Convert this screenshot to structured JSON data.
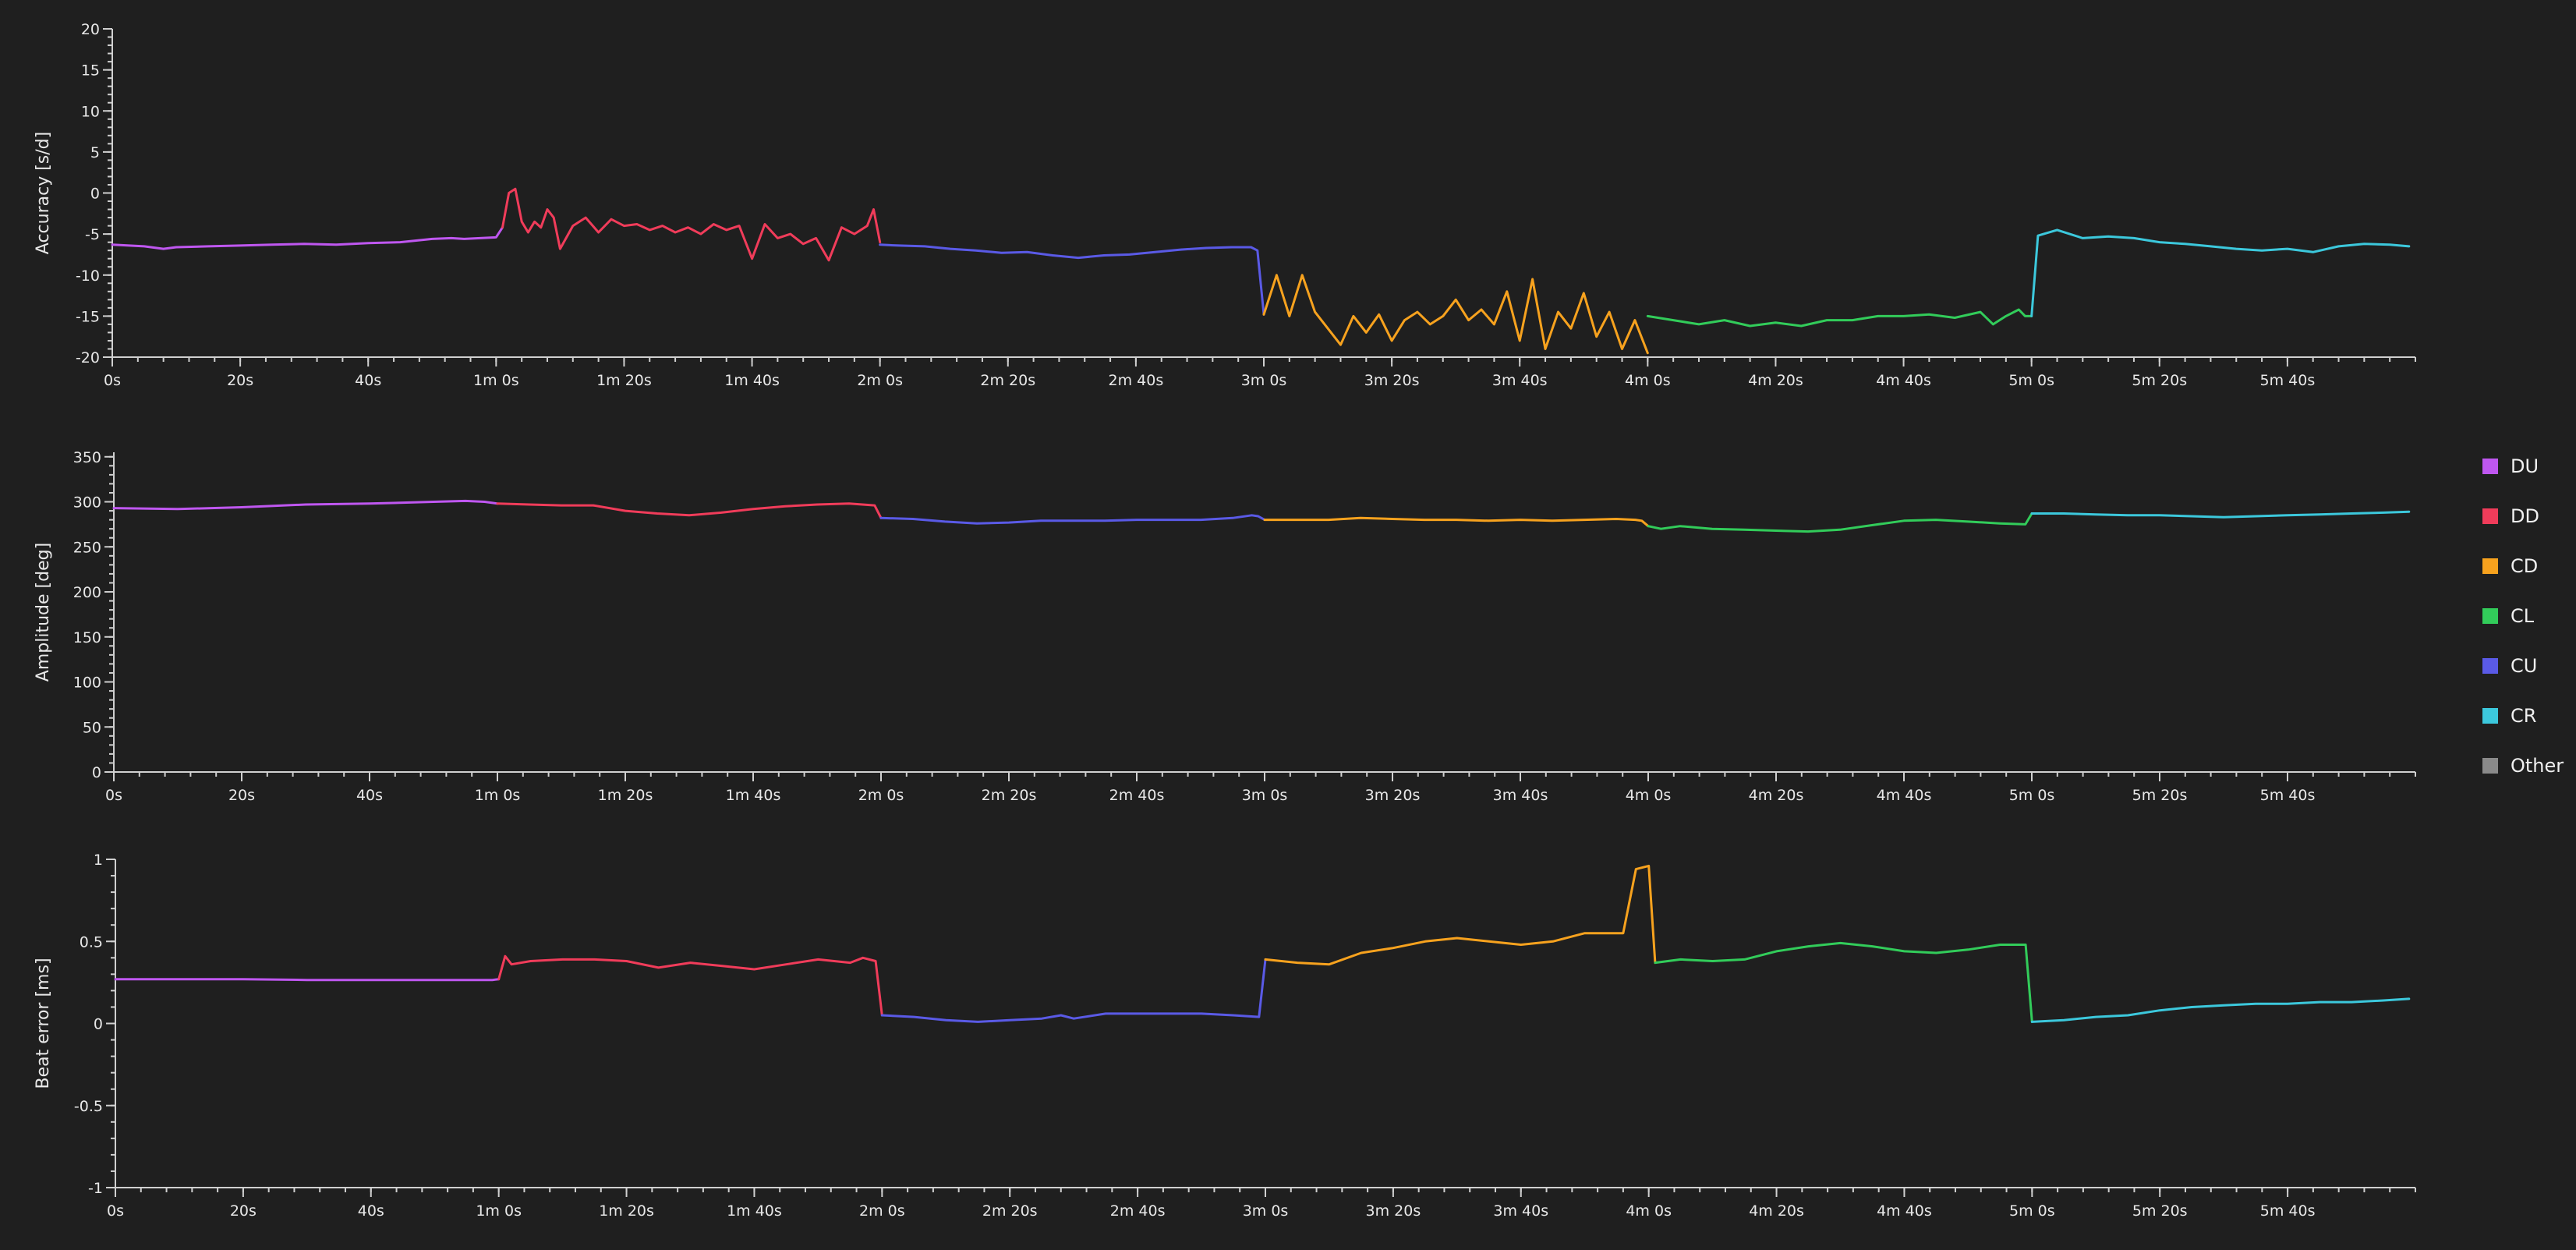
{
  "legend": {
    "items": [
      {
        "key": "DU",
        "label": "DU",
        "color": "#bf57f0"
      },
      {
        "key": "DD",
        "label": "DD",
        "color": "#f03c5a"
      },
      {
        "key": "CD",
        "label": "CD",
        "color": "#f7a21e"
      },
      {
        "key": "CL",
        "label": "CL",
        "color": "#32cc5a"
      },
      {
        "key": "CU",
        "label": "CU",
        "color": "#5a5ae6"
      },
      {
        "key": "CR",
        "label": "CR",
        "color": "#3cc8dc"
      },
      {
        "key": "Other",
        "label": "Other",
        "color": "#8a8a8a"
      }
    ]
  },
  "chart_data": [
    {
      "type": "line",
      "ylabel": "Accuracy [s/d]",
      "ylim": [
        -20,
        20
      ],
      "yticks": [
        {
          "value": 20,
          "label": "20"
        },
        {
          "value": 15,
          "label": "15"
        },
        {
          "value": 10,
          "label": "10"
        },
        {
          "value": 5,
          "label": "5"
        },
        {
          "value": 0,
          "label": "0"
        },
        {
          "value": -5,
          "label": "-5"
        },
        {
          "value": -10,
          "label": "-10"
        },
        {
          "value": -15,
          "label": "-15"
        },
        {
          "value": -20,
          "label": "-20"
        }
      ],
      "xlim": [
        0,
        360
      ],
      "xticks": [
        {
          "value": 0,
          "label": "0s"
        },
        {
          "value": 20,
          "label": "20s"
        },
        {
          "value": 40,
          "label": "40s"
        },
        {
          "value": 60,
          "label": "1m 0s"
        },
        {
          "value": 80,
          "label": "1m 20s"
        },
        {
          "value": 100,
          "label": "1m 40s"
        },
        {
          "value": 120,
          "label": "2m 0s"
        },
        {
          "value": 140,
          "label": "2m 20s"
        },
        {
          "value": 160,
          "label": "2m 40s"
        },
        {
          "value": 180,
          "label": "3m 0s"
        },
        {
          "value": 200,
          "label": "3m 20s"
        },
        {
          "value": 220,
          "label": "3m 40s"
        },
        {
          "value": 240,
          "label": "4m 0s"
        },
        {
          "value": 260,
          "label": "4m 20s"
        },
        {
          "value": 280,
          "label": "4m 40s"
        },
        {
          "value": 300,
          "label": "5m 0s"
        },
        {
          "value": 320,
          "label": "5m 20s"
        },
        {
          "value": 340,
          "label": "5m 40s"
        }
      ],
      "series": [
        {
          "key": "DU",
          "color": "#bf57f0",
          "x": [
            0,
            5,
            8,
            10,
            15,
            20,
            25,
            30,
            35,
            40,
            45,
            50,
            53,
            55,
            60,
            61
          ],
          "y": [
            -6.3,
            -6.5,
            -6.8,
            -6.6,
            -6.5,
            -6.4,
            -6.3,
            -6.2,
            -6.3,
            -6.1,
            -6,
            -5.6,
            -5.5,
            -5.6,
            -5.4,
            -4.2
          ]
        },
        {
          "key": "DD",
          "color": "#f03c5a",
          "x": [
            61,
            62,
            63,
            64,
            65,
            66,
            67,
            68,
            69,
            70,
            72,
            74,
            76,
            78,
            80,
            82,
            84,
            86,
            88,
            90,
            92,
            94,
            96,
            98,
            100,
            102,
            104,
            106,
            108,
            110,
            112,
            114,
            116,
            118,
            119,
            120
          ],
          "y": [
            -4.2,
            0,
            0.5,
            -3.5,
            -4.8,
            -3.5,
            -4.2,
            -2,
            -3,
            -6.8,
            -4,
            -3,
            -4.8,
            -3.2,
            -4,
            -3.8,
            -4.5,
            -4,
            -4.8,
            -4.2,
            -5,
            -3.8,
            -4.5,
            -4,
            -8,
            -3.8,
            -5.5,
            -5,
            -6.2,
            -5.5,
            -8.2,
            -4.2,
            -5,
            -4,
            -2,
            -6
          ]
        },
        {
          "key": "CU",
          "color": "#5a5ae6",
          "x": [
            120,
            123,
            127,
            131,
            135,
            139,
            143,
            147,
            151,
            155,
            159,
            163,
            167,
            171,
            175,
            178,
            179,
            180
          ],
          "y": [
            -6.3,
            -6.4,
            -6.5,
            -6.8,
            -7,
            -7.3,
            -7.2,
            -7.6,
            -7.9,
            -7.6,
            -7.5,
            -7.2,
            -6.9,
            -6.7,
            -6.6,
            -6.6,
            -7,
            -14.8
          ]
        },
        {
          "key": "CD",
          "color": "#f7a21e",
          "x": [
            180,
            182,
            184,
            186,
            188,
            190,
            192,
            194,
            196,
            198,
            200,
            202,
            204,
            206,
            208,
            210,
            212,
            214,
            216,
            218,
            220,
            222,
            224,
            226,
            228,
            230,
            232,
            234,
            236,
            238,
            240
          ],
          "y": [
            -14.8,
            -10,
            -15,
            -10,
            -14.5,
            -16.5,
            -18.5,
            -15,
            -17,
            -14.8,
            -18,
            -15.5,
            -14.5,
            -16,
            -15,
            -13,
            -15.5,
            -14.2,
            -16,
            -12,
            -18,
            -10.5,
            -19,
            -14.5,
            -16.5,
            -12.2,
            -17.5,
            -14.5,
            -19,
            -15.5,
            -19.5
          ]
        },
        {
          "key": "CL",
          "color": "#32cc5a",
          "x": [
            240,
            244,
            248,
            252,
            256,
            260,
            264,
            268,
            272,
            276,
            280,
            284,
            288,
            292,
            294,
            296,
            298,
            299,
            300
          ],
          "y": [
            -15,
            -15.5,
            -16,
            -15.5,
            -16.2,
            -15.8,
            -16.2,
            -15.5,
            -15.5,
            -15,
            -15,
            -14.8,
            -15.2,
            -14.5,
            -16,
            -15,
            -14.2,
            -15,
            -15
          ]
        },
        {
          "key": "CR",
          "color": "#3cc8dc",
          "x": [
            300,
            301,
            304,
            308,
            312,
            316,
            320,
            324,
            328,
            332,
            336,
            340,
            344,
            348,
            352,
            356,
            359
          ],
          "y": [
            -15,
            -5.2,
            -4.5,
            -5.5,
            -5.3,
            -5.5,
            -6,
            -6.2,
            -6.5,
            -6.8,
            -7,
            -6.8,
            -7.2,
            -6.5,
            -6.2,
            -6.3,
            -6.5
          ]
        }
      ]
    },
    {
      "type": "line",
      "ylabel": "Amplitude [deg]",
      "ylim": [
        0,
        355
      ],
      "yticks": [
        {
          "value": 350,
          "label": "350"
        },
        {
          "value": 300,
          "label": "300"
        },
        {
          "value": 250,
          "label": "250"
        },
        {
          "value": 200,
          "label": "200"
        },
        {
          "value": 150,
          "label": "150"
        },
        {
          "value": 100,
          "label": "100"
        },
        {
          "value": 50,
          "label": "50"
        },
        {
          "value": 0,
          "label": "0"
        }
      ],
      "xlim": [
        0,
        360
      ],
      "xticks": [
        {
          "value": 0,
          "label": "0s"
        },
        {
          "value": 20,
          "label": "20s"
        },
        {
          "value": 40,
          "label": "40s"
        },
        {
          "value": 60,
          "label": "1m 0s"
        },
        {
          "value": 80,
          "label": "1m 20s"
        },
        {
          "value": 100,
          "label": "1m 40s"
        },
        {
          "value": 120,
          "label": "2m 0s"
        },
        {
          "value": 140,
          "label": "2m 20s"
        },
        {
          "value": 160,
          "label": "2m 40s"
        },
        {
          "value": 180,
          "label": "3m 0s"
        },
        {
          "value": 200,
          "label": "3m 20s"
        },
        {
          "value": 220,
          "label": "3m 40s"
        },
        {
          "value": 240,
          "label": "4m 0s"
        },
        {
          "value": 260,
          "label": "4m 20s"
        },
        {
          "value": 280,
          "label": "4m 40s"
        },
        {
          "value": 300,
          "label": "5m 0s"
        },
        {
          "value": 320,
          "label": "5m 20s"
        },
        {
          "value": 340,
          "label": "5m 40s"
        }
      ],
      "series": [
        {
          "key": "DU",
          "color": "#bf57f0",
          "x": [
            0,
            10,
            20,
            30,
            40,
            50,
            55,
            58,
            60
          ],
          "y": [
            293,
            292,
            294,
            297,
            298,
            300,
            301,
            300,
            298
          ]
        },
        {
          "key": "DD",
          "color": "#f03c5a",
          "x": [
            60,
            65,
            70,
            75,
            80,
            85,
            90,
            95,
            100,
            105,
            110,
            115,
            119,
            120
          ],
          "y": [
            298,
            297,
            296,
            296,
            290,
            287,
            285,
            288,
            292,
            295,
            297,
            298,
            296,
            282
          ]
        },
        {
          "key": "CU",
          "color": "#5a5ae6",
          "x": [
            120,
            125,
            130,
            135,
            140,
            145,
            150,
            155,
            160,
            165,
            170,
            175,
            178,
            179,
            180
          ],
          "y": [
            282,
            281,
            278,
            276,
            277,
            279,
            279,
            279,
            280,
            280,
            280,
            282,
            285,
            284,
            280
          ]
        },
        {
          "key": "CD",
          "color": "#f7a21e",
          "x": [
            180,
            185,
            190,
            195,
            200,
            205,
            210,
            215,
            220,
            225,
            230,
            235,
            238,
            239,
            240
          ],
          "y": [
            280,
            280,
            280,
            282,
            281,
            280,
            280,
            279,
            280,
            279,
            280,
            281,
            280,
            279,
            273
          ]
        },
        {
          "key": "CL",
          "color": "#32cc5a",
          "x": [
            240,
            242,
            245,
            250,
            255,
            260,
            265,
            270,
            275,
            280,
            285,
            290,
            295,
            299,
            300
          ],
          "y": [
            273,
            270,
            273,
            270,
            269,
            268,
            267,
            269,
            274,
            279,
            280,
            278,
            276,
            275,
            287
          ]
        },
        {
          "key": "CR",
          "color": "#3cc8dc",
          "x": [
            300,
            305,
            310,
            315,
            320,
            325,
            330,
            335,
            340,
            345,
            350,
            355,
            359
          ],
          "y": [
            287,
            287,
            286,
            285,
            285,
            284,
            283,
            284,
            285,
            286,
            287,
            288,
            289
          ]
        }
      ]
    },
    {
      "type": "line",
      "ylabel": "Beat error [ms]",
      "ylim": [
        -1,
        1
      ],
      "yticks": [
        {
          "value": 1,
          "label": "1"
        },
        {
          "value": 0.5,
          "label": "0.5"
        },
        {
          "value": 0,
          "label": "0"
        },
        {
          "value": -0.5,
          "label": "-0.5"
        },
        {
          "value": -1,
          "label": "-1"
        }
      ],
      "xlim": [
        0,
        360
      ],
      "xticks": [
        {
          "value": 0,
          "label": "0s"
        },
        {
          "value": 20,
          "label": "20s"
        },
        {
          "value": 40,
          "label": "40s"
        },
        {
          "value": 60,
          "label": "1m 0s"
        },
        {
          "value": 80,
          "label": "1m 20s"
        },
        {
          "value": 100,
          "label": "1m 40s"
        },
        {
          "value": 120,
          "label": "2m 0s"
        },
        {
          "value": 140,
          "label": "2m 20s"
        },
        {
          "value": 160,
          "label": "2m 40s"
        },
        {
          "value": 180,
          "label": "3m 0s"
        },
        {
          "value": 200,
          "label": "3m 20s"
        },
        {
          "value": 220,
          "label": "3m 40s"
        },
        {
          "value": 240,
          "label": "4m 0s"
        },
        {
          "value": 260,
          "label": "4m 20s"
        },
        {
          "value": 280,
          "label": "4m 40s"
        },
        {
          "value": 300,
          "label": "5m 0s"
        },
        {
          "value": 320,
          "label": "5m 20s"
        },
        {
          "value": 340,
          "label": "5m 40s"
        }
      ],
      "series": [
        {
          "key": "DU",
          "color": "#bf57f0",
          "x": [
            0,
            10,
            20,
            30,
            40,
            50,
            59,
            60
          ],
          "y": [
            0.27,
            0.27,
            0.27,
            0.265,
            0.265,
            0.265,
            0.265,
            0.27
          ]
        },
        {
          "key": "DD",
          "color": "#f03c5a",
          "x": [
            60,
            61,
            62,
            65,
            70,
            75,
            80,
            85,
            90,
            95,
            100,
            105,
            110,
            115,
            117,
            119,
            120
          ],
          "y": [
            0.27,
            0.41,
            0.36,
            0.38,
            0.39,
            0.39,
            0.38,
            0.34,
            0.37,
            0.35,
            0.33,
            0.36,
            0.39,
            0.37,
            0.4,
            0.38,
            0.05
          ]
        },
        {
          "key": "CU",
          "color": "#5a5ae6",
          "x": [
            120,
            125,
            130,
            135,
            140,
            145,
            148,
            150,
            155,
            160,
            165,
            170,
            175,
            179,
            180
          ],
          "y": [
            0.05,
            0.04,
            0.02,
            0.01,
            0.02,
            0.03,
            0.05,
            0.03,
            0.06,
            0.06,
            0.06,
            0.06,
            0.05,
            0.04,
            0.39
          ]
        },
        {
          "key": "CD",
          "color": "#f7a21e",
          "x": [
            180,
            185,
            190,
            195,
            200,
            205,
            210,
            215,
            220,
            225,
            230,
            235,
            236,
            238,
            240,
            241
          ],
          "y": [
            0.39,
            0.37,
            0.36,
            0.43,
            0.46,
            0.5,
            0.52,
            0.5,
            0.48,
            0.5,
            0.55,
            0.55,
            0.55,
            0.94,
            0.96,
            0.37
          ]
        },
        {
          "key": "CL",
          "color": "#32cc5a",
          "x": [
            241,
            245,
            250,
            255,
            260,
            265,
            270,
            275,
            280,
            285,
            290,
            295,
            299,
            300
          ],
          "y": [
            0.37,
            0.39,
            0.38,
            0.39,
            0.44,
            0.47,
            0.49,
            0.47,
            0.44,
            0.43,
            0.45,
            0.48,
            0.48,
            0.01
          ]
        },
        {
          "key": "CR",
          "color": "#3cc8dc",
          "x": [
            300,
            305,
            310,
            315,
            320,
            325,
            330,
            335,
            340,
            345,
            350,
            355,
            359
          ],
          "y": [
            0.01,
            0.02,
            0.04,
            0.05,
            0.08,
            0.1,
            0.11,
            0.12,
            0.12,
            0.13,
            0.13,
            0.14,
            0.15
          ]
        }
      ]
    }
  ]
}
